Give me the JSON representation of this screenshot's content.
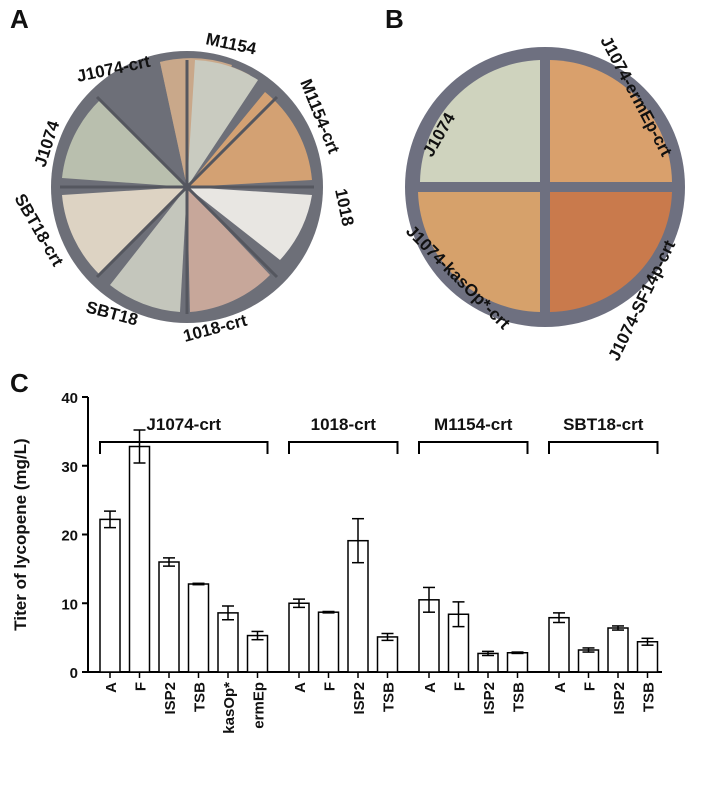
{
  "panels": {
    "a": {
      "label": "A",
      "plates": [
        "J1074-crt",
        "M1154",
        "M1154-crt",
        "1018",
        "1018-crt",
        "SBT18",
        "SBT18-crt",
        "J1074"
      ]
    },
    "b": {
      "label": "B",
      "plates": [
        "J1074",
        "J1074-ermEp-crt",
        "J1074-SF14p-crt",
        "J1074-kasOp*-crt"
      ]
    },
    "c": {
      "label": "C"
    }
  },
  "chart_data": {
    "type": "bar",
    "y_label": "Titer of lycopene (mg/L)",
    "ylim": [
      0,
      40
    ],
    "yticks": [
      0,
      10,
      20,
      30,
      40
    ],
    "color": "#ffffff",
    "groups": [
      {
        "name": "J1074-crt",
        "categories": [
          "A",
          "F",
          "ISP2",
          "TSB",
          "kasOp*",
          "ermEp"
        ],
        "values": [
          22.2,
          32.8,
          16.0,
          12.8,
          8.6,
          5.3
        ],
        "errors": [
          1.2,
          2.4,
          0.6,
          0.1,
          1.0,
          0.6
        ]
      },
      {
        "name": "1018-crt",
        "categories": [
          "A",
          "F",
          "ISP2",
          "TSB"
        ],
        "values": [
          10.0,
          8.7,
          19.1,
          5.1
        ],
        "errors": [
          0.6,
          0.1,
          3.2,
          0.5
        ]
      },
      {
        "name": "M1154-crt",
        "categories": [
          "A",
          "F",
          "ISP2",
          "TSB"
        ],
        "values": [
          10.5,
          8.4,
          2.7,
          2.8
        ],
        "errors": [
          1.8,
          1.8,
          0.3,
          0.1
        ]
      },
      {
        "name": "SBT18-crt",
        "categories": [
          "A",
          "F",
          "ISP2",
          "TSB"
        ],
        "values": [
          7.9,
          3.2,
          6.4,
          4.4
        ],
        "errors": [
          0.7,
          0.3,
          0.3,
          0.5
        ]
      }
    ]
  }
}
